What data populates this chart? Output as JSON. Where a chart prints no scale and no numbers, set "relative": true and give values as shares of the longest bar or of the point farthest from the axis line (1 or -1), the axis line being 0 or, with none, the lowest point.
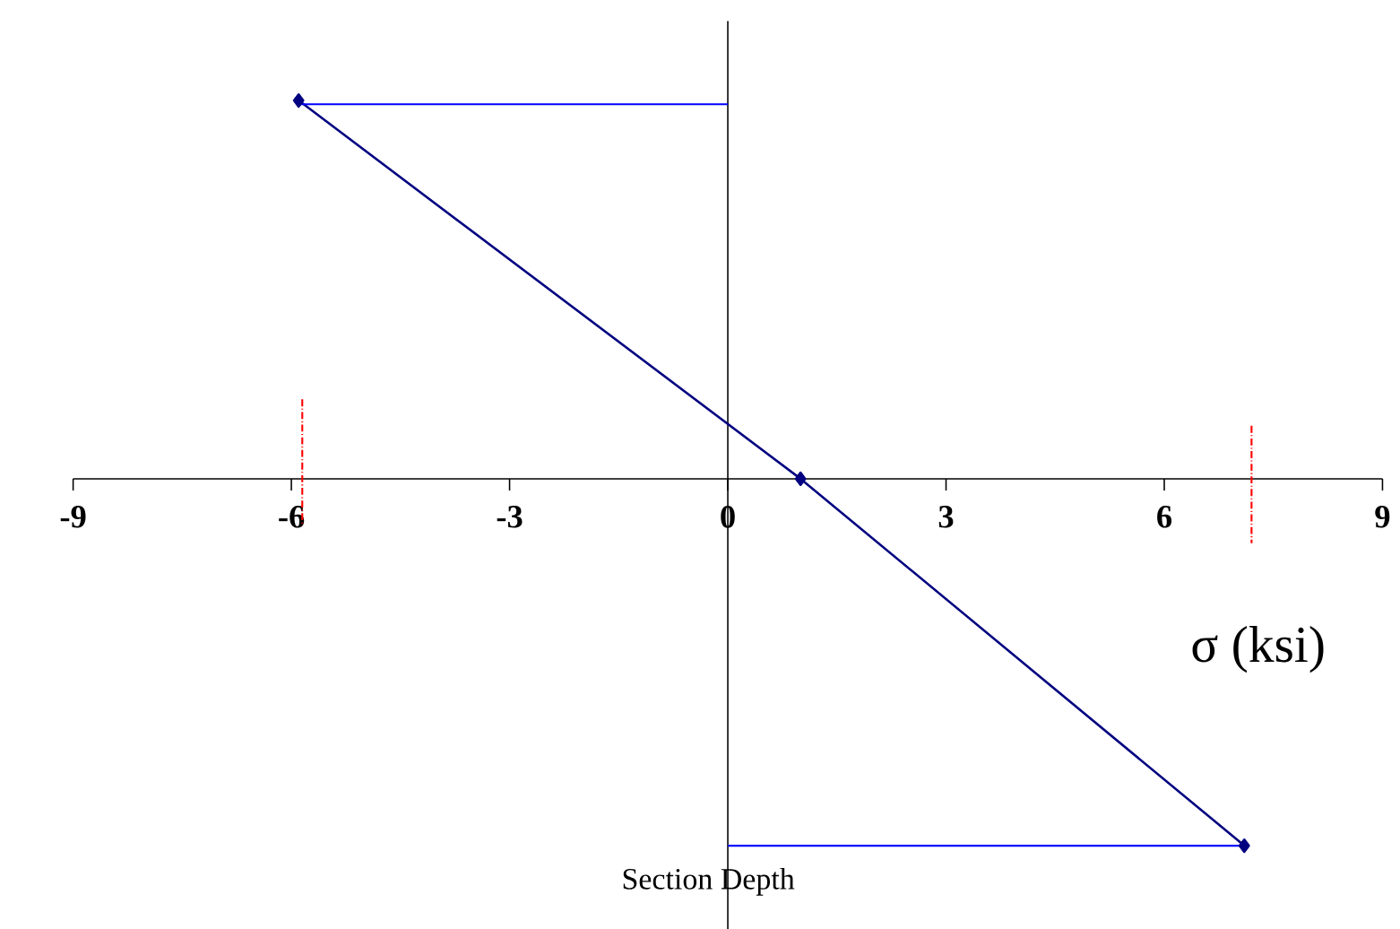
{
  "chart_data": {
    "type": "line",
    "relative": true,
    "xlabel": "σ (ksi)",
    "annotations": [
      "Section Depth"
    ],
    "xlim": [
      -9,
      9
    ],
    "xticks": [
      -9,
      -6,
      -3,
      0,
      3,
      6,
      9
    ],
    "series": [
      {
        "color": "#000080",
        "x": [
          -5.9,
          1,
          7.1
        ],
        "values": [
          1,
          0,
          -0.97
        ],
        "marker": "diamond",
        "line_style": "solid"
      },
      {
        "color": "#0000ff",
        "x": [
          -5.9,
          0
        ],
        "values": [
          0.99,
          0.99
        ],
        "marker": "none",
        "line_style": "solid"
      },
      {
        "color": "#0000ff",
        "x": [
          0,
          7.1
        ],
        "values": [
          -0.97,
          -0.97
        ],
        "marker": "none",
        "line_style": "solid"
      },
      {
        "color": "#ff0000",
        "x": [
          -5.85,
          -5.85
        ],
        "values": [
          0.21,
          -0.12
        ],
        "marker": "none",
        "line_style": "dashed"
      },
      {
        "color": "#ff0000",
        "x": [
          7.2,
          7.2
        ],
        "values": [
          0.14,
          -0.17
        ],
        "marker": "none",
        "line_style": "dashed"
      }
    ]
  }
}
